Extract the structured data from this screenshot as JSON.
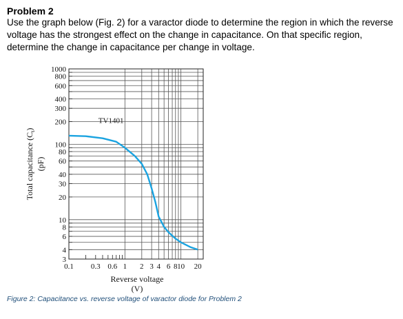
{
  "problem": {
    "heading": "Problem 2",
    "lines": [
      "Use the graph below (Fig. 2) for a varactor diode to determine the region in which the reverse",
      "voltage has the strongest effect on the change in capacitance. On that specific region,",
      "determine the change in capacitance per change in voltage."
    ]
  },
  "figure": {
    "caption": "Figure 2: Capacitance vs. reverse voltage of varactor diode for Problem 2"
  },
  "chart_data": {
    "type": "line",
    "title": "",
    "xlabel": "Reverse voltage",
    "xunit": "(V)",
    "ylabel": "Total capacitance (C",
    "ylabel_sub": "t",
    "ylabel_tail": ")",
    "yunit": "(pF)",
    "xscale": "log",
    "yscale": "log",
    "xlim": [
      0.1,
      25
    ],
    "ylim": [
      3,
      1000
    ],
    "grid": true,
    "xtick_labels": [
      "0.1",
      "0.3",
      "0.6",
      "1",
      "2",
      "3",
      "4",
      "6",
      "8",
      "10",
      "20"
    ],
    "xtick_values": [
      0.1,
      0.3,
      0.6,
      1,
      2,
      3,
      4,
      6,
      8,
      10,
      20
    ],
    "ytick_labels": [
      "1000",
      "800",
      "600",
      "400",
      "300",
      "200",
      "100",
      "80",
      "60",
      "40",
      "30",
      "20",
      "10",
      "8",
      "6",
      "4",
      "3"
    ],
    "ytick_values": [
      1000,
      800,
      600,
      400,
      300,
      200,
      100,
      80,
      60,
      40,
      30,
      20,
      10,
      8,
      6,
      4,
      3
    ],
    "series": [
      {
        "name": "TV1401",
        "color": "#1aa3e0",
        "x": [
          0.1,
          0.2,
          0.4,
          0.7,
          1.0,
          1.5,
          2.0,
          2.5,
          3.0,
          3.5,
          4.0,
          5.0,
          6.0,
          8.0,
          10.0,
          15.0,
          20.0
        ],
        "y": [
          130,
          128,
          120,
          108,
          90,
          70,
          55,
          40,
          26,
          17,
          11,
          8.0,
          6.8,
          5.6,
          5.0,
          4.3,
          4.0
        ]
      }
    ]
  }
}
